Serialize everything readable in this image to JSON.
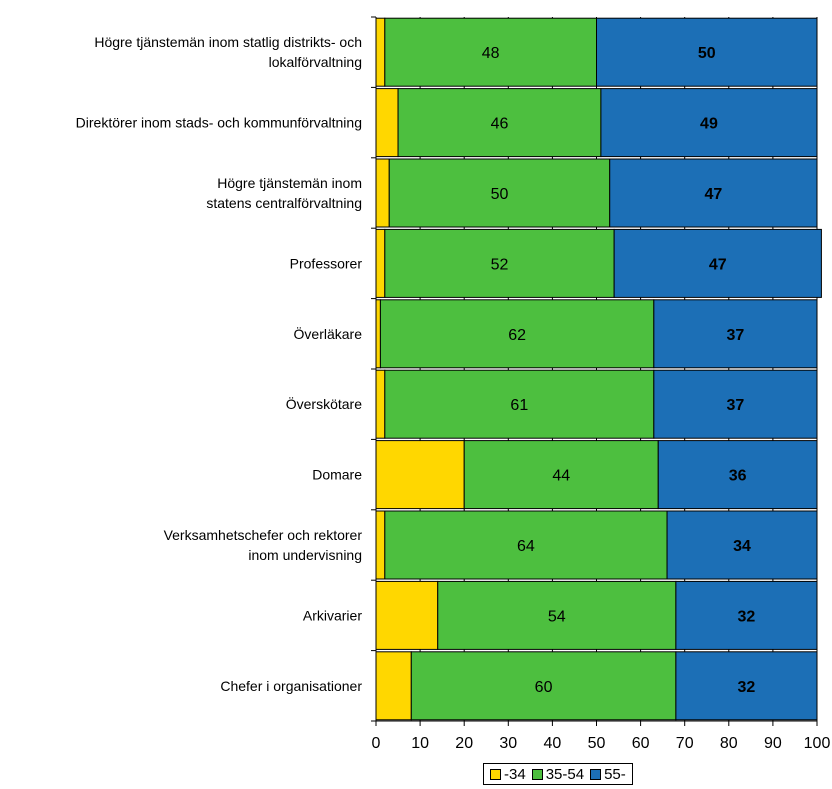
{
  "chart_data": {
    "type": "bar",
    "orientation": "horizontal",
    "stacked": true,
    "categories": [
      "Högre tjänstemän inom statlig distrikts- och lokalförvaltning",
      "Direktörer inom stads- och kommunförvaltning",
      "Högre tjänstemän inom statens centralförvaltning",
      "Professorer",
      "Överläkare",
      "Överskötare",
      "Domare",
      "Verksamhetschefer och rektorer inom undervisning",
      "Arkivarier",
      "Chefer i organisationer"
    ],
    "category_lines": [
      [
        "Högre tjänstemän inom statlig distrikts- och",
        "lokalförvaltning"
      ],
      [
        "Direktörer inom stads- och kommunförvaltning"
      ],
      [
        "Högre tjänstemän inom",
        "statens centralförvaltning"
      ],
      [
        "Professorer"
      ],
      [
        "Överläkare"
      ],
      [
        "Överskötare"
      ],
      [
        "Domare"
      ],
      [
        "Verksamhetschefer och rektorer",
        "inom undervisning"
      ],
      [
        "Arkivarier"
      ],
      [
        "Chefer i organisationer"
      ]
    ],
    "series": [
      {
        "name": "-34",
        "color": "#FFD700",
        "values": [
          2,
          5,
          3,
          2,
          1,
          2,
          20,
          2,
          14,
          8
        ],
        "labels_visible": false
      },
      {
        "name": "35-54",
        "color": "#4DBF3F",
        "values": [
          48,
          46,
          50,
          52,
          62,
          61,
          44,
          64,
          54,
          60
        ],
        "labels_visible": true
      },
      {
        "name": "55-",
        "color": "#1C6FB6",
        "values": [
          50,
          49,
          47,
          47,
          37,
          37,
          36,
          34,
          32,
          32
        ],
        "labels_visible": true
      }
    ],
    "xlim": [
      0,
      100
    ],
    "xticks": [
      "0",
      "10",
      "20",
      "30",
      "40",
      "50",
      "60",
      "70",
      "80",
      "90",
      "100"
    ],
    "grid": "vertical",
    "legend_position": "bottom-right",
    "title": "",
    "xlabel": "",
    "ylabel": ""
  }
}
